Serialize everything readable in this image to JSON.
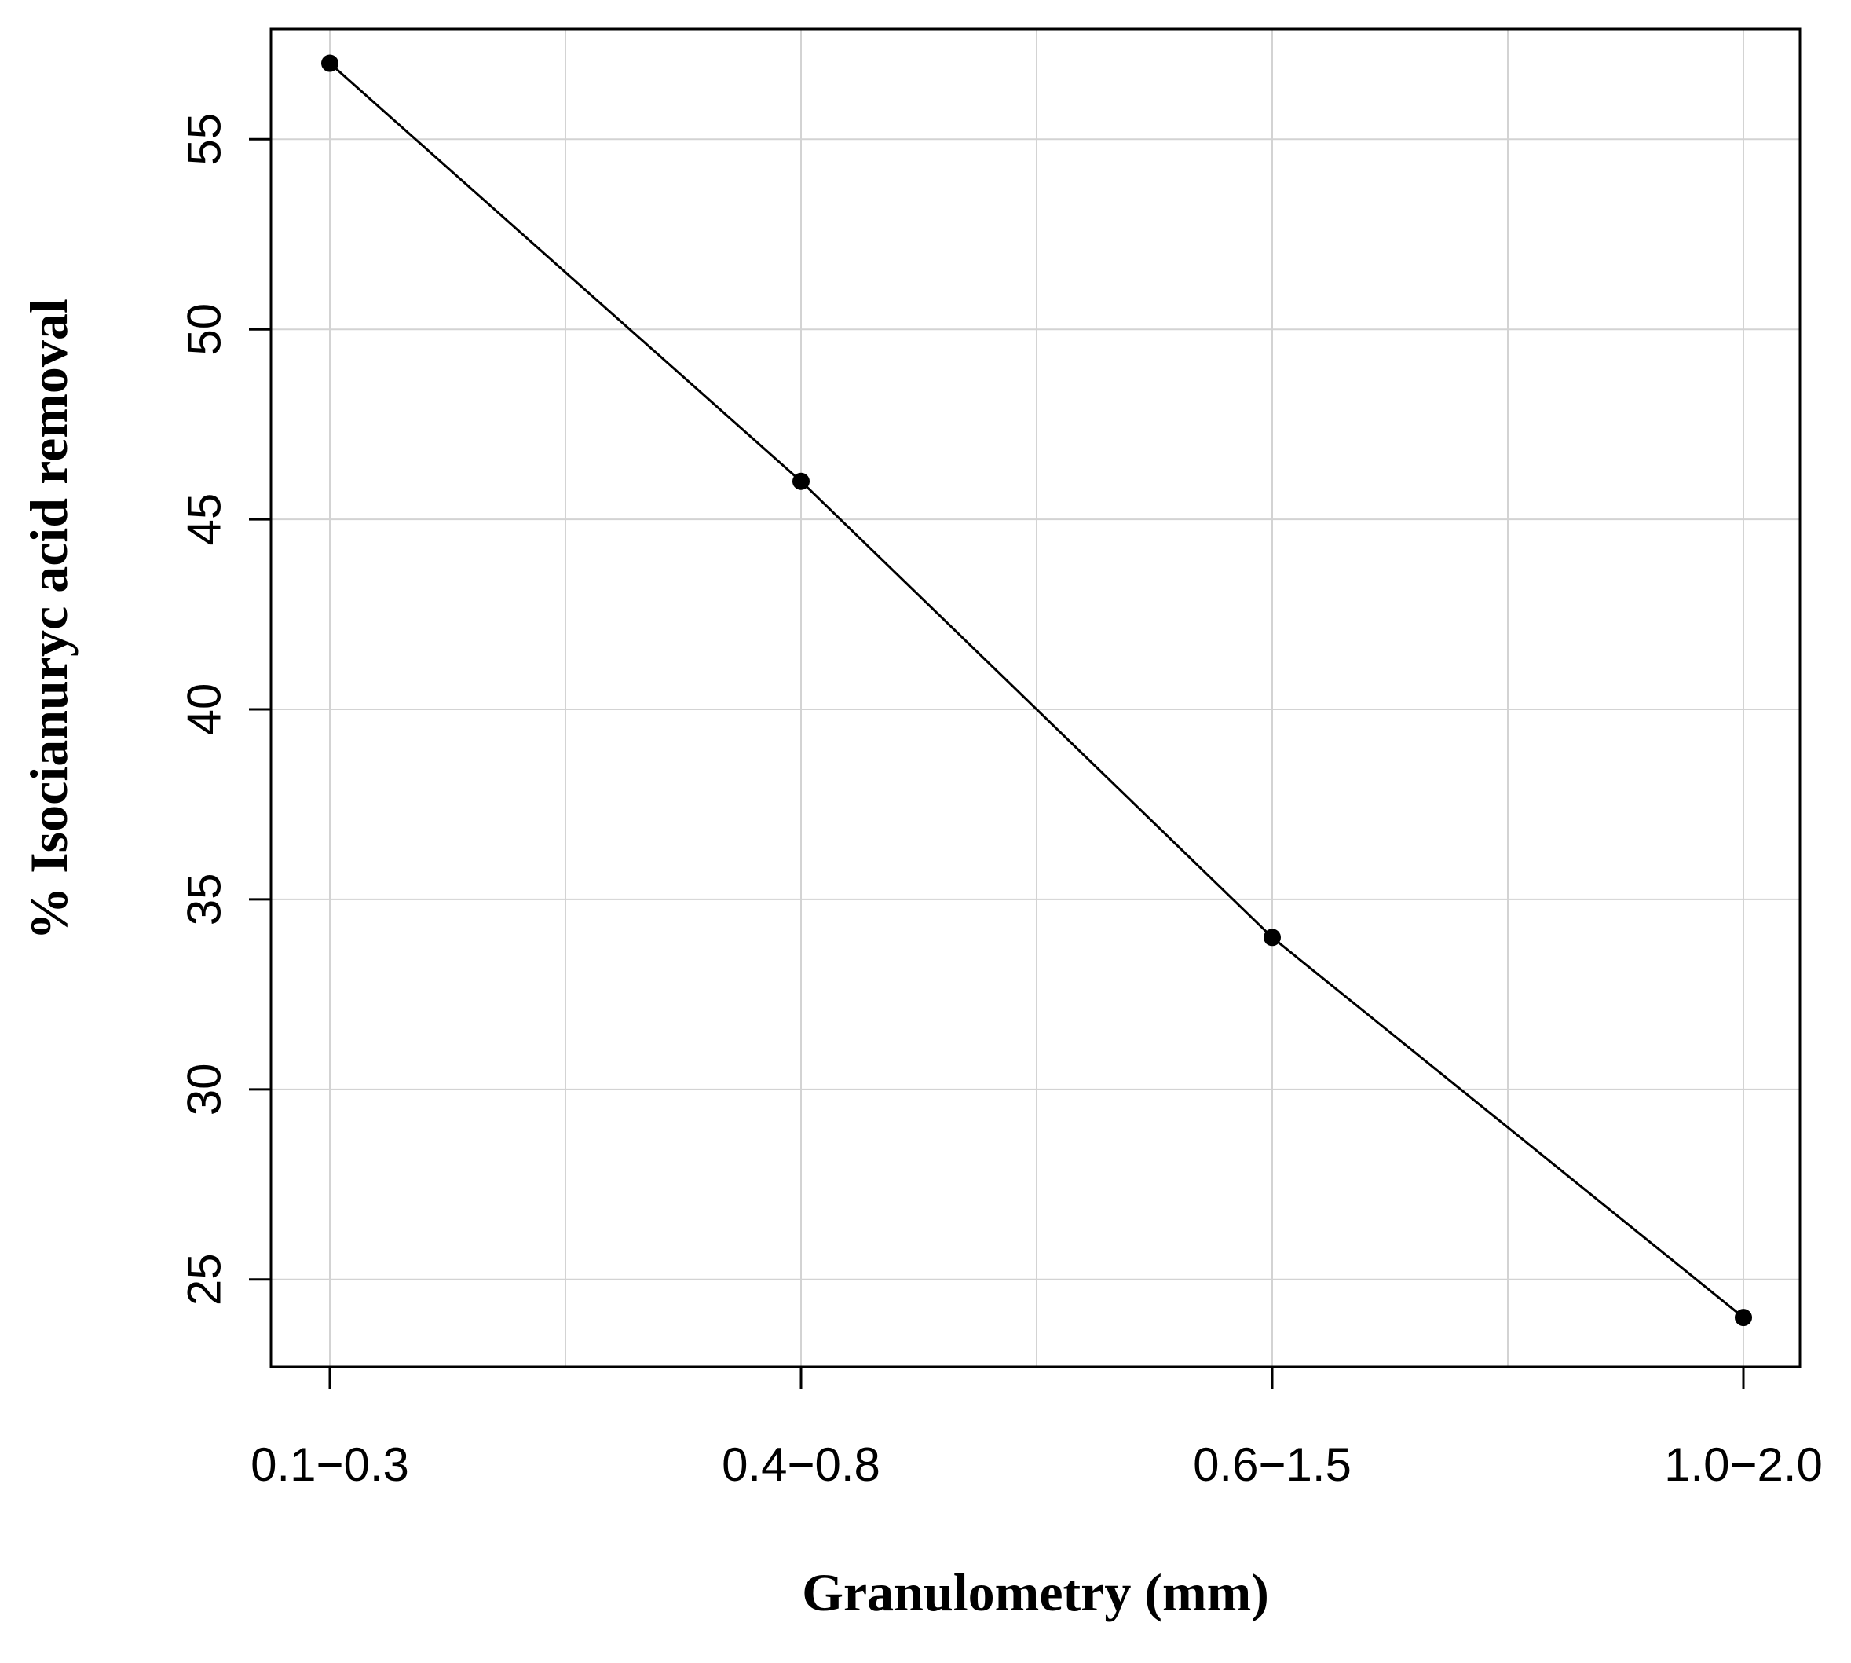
{
  "chart_data": {
    "type": "line",
    "title": "",
    "xlabel": "Granulometry (mm)",
    "ylabel": "% Isocianuryc acid removal",
    "categories": [
      "0.1−0.3",
      "0.4−0.8",
      "0.6−1.5",
      "1.0−2.0"
    ],
    "values": [
      57,
      46,
      34,
      24
    ],
    "yticks": [
      "25",
      "30",
      "35",
      "40",
      "45",
      "50",
      "55"
    ],
    "ylim": [
      22.7,
      57.9
    ],
    "grid": true,
    "legend": "none",
    "colors": {
      "line": "#000000",
      "points": "#000000",
      "grid": "#d3d3d3",
      "frame": "#000000"
    }
  }
}
